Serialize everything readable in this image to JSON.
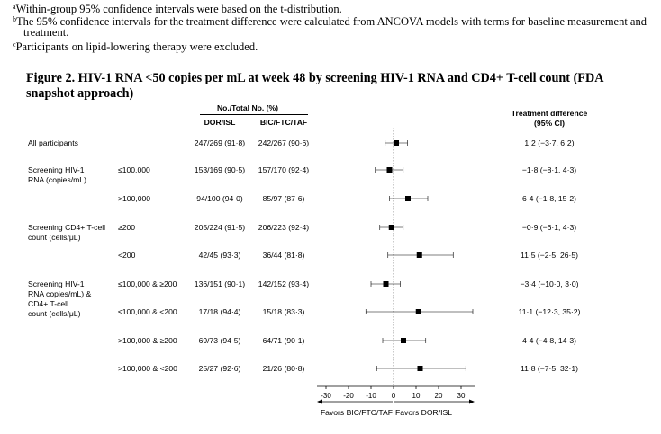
{
  "footnotes": [
    {
      "mark": "a",
      "text": "Within-group 95% confidence intervals were based on the t-distribution."
    },
    {
      "mark": "b",
      "text": "The 95% confidence intervals for the treatment difference were calculated from ANCOVA models with terms for baseline measurement and",
      "cont": "treatment."
    },
    {
      "mark": "c",
      "text": "Participants on lipid-lowering therapy were excluded."
    }
  ],
  "figure_title_line1": "Figure 2. HIV-1 RNA <50 copies per mL at week 48 by screening HIV-1 RNA and CD4+ T-cell count (FDA",
  "figure_title_line2": "snapshot approach)",
  "table": {
    "group_header": "No./Total No. (%)",
    "col_dor": "DOR/ISL",
    "col_bic": "BIC/FTC/TAF",
    "col_diff_line1": "Treatment difference",
    "col_diff_line2": "(95% CI)",
    "groups": {
      "all": "All participants",
      "rna_l1": "Screening HIV-1",
      "rna_l2": "RNA (copies/mL)",
      "cd4_l1": "Screening CD4+ T-cell",
      "cd4_l2": "count (cells/μL)",
      "combo_l1": "Screening HIV-1",
      "combo_l2": "RNA copies/mL) &",
      "combo_l3": "CD4+ T-cell",
      "combo_l4": "count (cells/μL)"
    },
    "rows": [
      {
        "sub": "",
        "dor": "247/269 (91·8)",
        "bic": "242/267 (90·6)",
        "diff": "1·2 (−3·7, 6·2)"
      },
      {
        "sub": "≤100,000",
        "dor": "153/169 (90·5)",
        "bic": "157/170 (92·4)",
        "diff": "−1·8 (−8·1, 4·3)"
      },
      {
        "sub": ">100,000",
        "dor": "94/100 (94·0)",
        "bic": "85/97 (87·6)",
        "diff": "6·4 (−1·8, 15·2)"
      },
      {
        "sub": "≥200",
        "dor": "205/224 (91·5)",
        "bic": "206/223 (92·4)",
        "diff": "−0·9 (−6·1, 4·3)"
      },
      {
        "sub": "<200",
        "dor": "42/45 (93·3)",
        "bic": "36/44 (81·8)",
        "diff": "11·5 (−2·5, 26·5)"
      },
      {
        "sub": "≤100,000 & ≥200",
        "dor": "136/151 (90·1)",
        "bic": "142/152 (93·4)",
        "diff": "−3·4 (−10·0, 3·0)"
      },
      {
        "sub": "≤100,000 & <200",
        "dor": "17/18 (94·4)",
        "bic": "15/18 (83·3)",
        "diff": "11·1 (−12·3, 35·2)"
      },
      {
        "sub": ">100,000 & ≥200",
        "dor": "69/73 (94·5)",
        "bic": "64/71 (90·1)",
        "diff": "4·4 (−4·8, 14·3)"
      },
      {
        "sub": ">100,000 & <200",
        "dor": "25/27 (92·6)",
        "bic": "21/26 (80·8)",
        "diff": "11·8 (−7·5, 32·1)"
      }
    ]
  },
  "chart_data": {
    "type": "scatter",
    "subtype": "forest-plot",
    "x": [
      1.2,
      -1.8,
      6.4,
      -0.9,
      11.5,
      -3.4,
      11.1,
      4.4,
      11.8
    ],
    "ci_low": [
      -3.7,
      -8.1,
      -1.8,
      -6.1,
      -2.5,
      -10.0,
      -12.3,
      -4.8,
      -7.5
    ],
    "ci_high": [
      6.2,
      4.3,
      15.2,
      4.3,
      26.5,
      3.0,
      35.2,
      14.3,
      32.1
    ],
    "xlim": [
      -34,
      36
    ],
    "xticks": [
      "-30",
      "-20",
      "-10",
      "0",
      "10",
      "20",
      "30"
    ],
    "xtick_values": [
      -30,
      -20,
      -10,
      0,
      10,
      20,
      30
    ],
    "reference_line": 0,
    "favors_left": "Favors BIC/FTC/TAF",
    "favors_right": "Favors DOR/ISL",
    "grid": false,
    "marker": "square"
  }
}
